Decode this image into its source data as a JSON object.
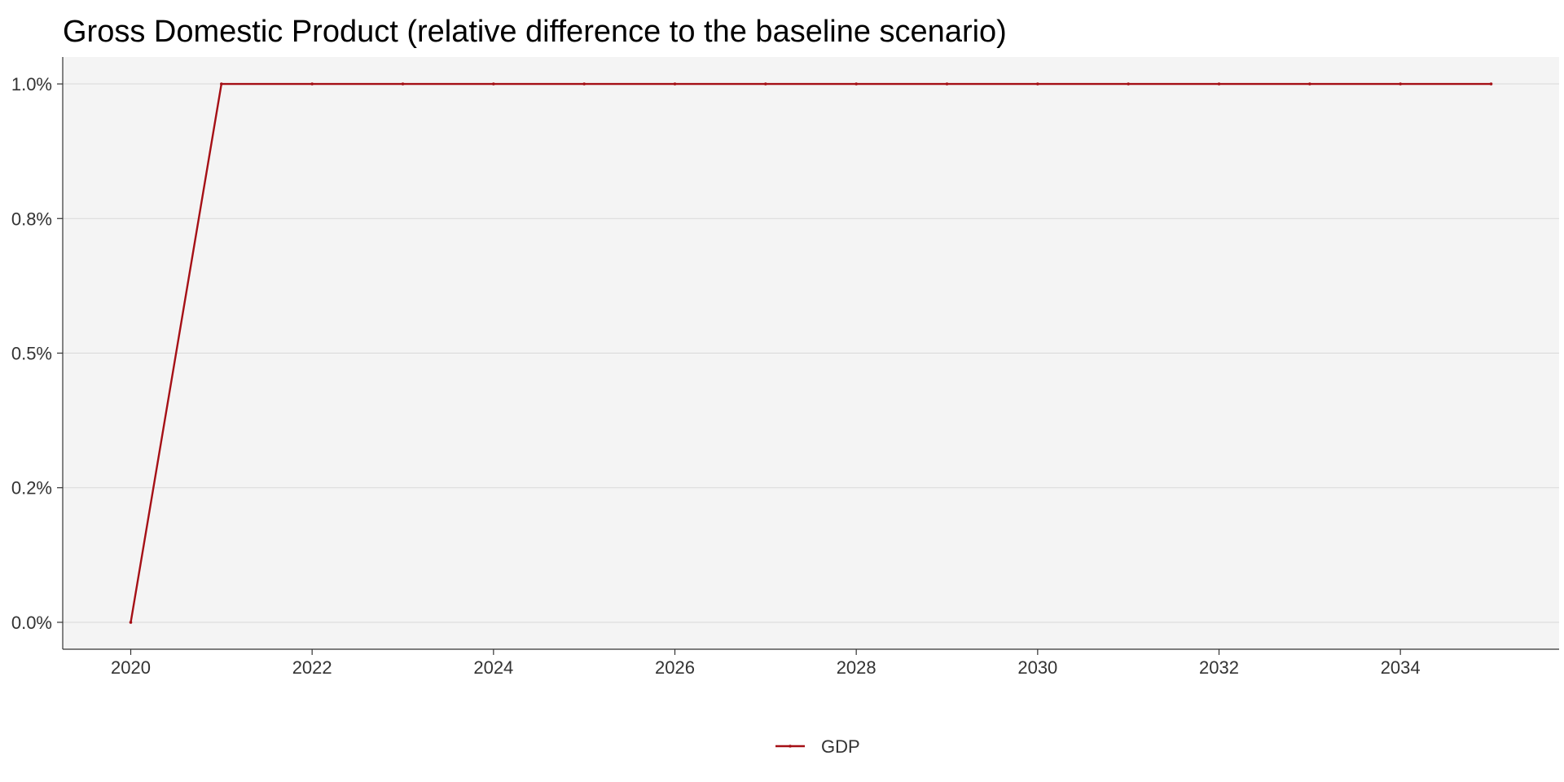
{
  "chart_data": {
    "type": "line",
    "title": "Gross Domestic Product (relative difference to the baseline scenario)",
    "xlabel": "",
    "ylabel": "",
    "x": [
      2020,
      2021,
      2022,
      2023,
      2024,
      2025,
      2026,
      2027,
      2028,
      2029,
      2030,
      2031,
      2032,
      2033,
      2034,
      2035
    ],
    "series": [
      {
        "name": "GDP",
        "color": "#a50f15",
        "values": [
          0.0,
          1.0,
          1.0,
          1.0,
          1.0,
          1.0,
          1.0,
          1.0,
          1.0,
          1.0,
          1.0,
          1.0,
          1.0,
          1.0,
          1.0,
          1.0
        ]
      }
    ],
    "xlim": [
      2019.25,
      2035.75
    ],
    "ylim": [
      -0.05,
      1.05
    ],
    "x_ticks": [
      2020,
      2022,
      2024,
      2026,
      2028,
      2030,
      2032,
      2034
    ],
    "x_tick_labels": [
      "2020",
      "2022",
      "2024",
      "2026",
      "2028",
      "2030",
      "2032",
      "2034"
    ],
    "y_ticks": [
      0.0,
      0.25,
      0.5,
      0.75,
      1.0
    ],
    "y_tick_labels": [
      "0.0%",
      "0.2%",
      "0.5%",
      "0.8%",
      "1.0%"
    ],
    "grid": "horizontal",
    "panel_background": "#f4f4f4",
    "legend_position": "bottom-center"
  }
}
